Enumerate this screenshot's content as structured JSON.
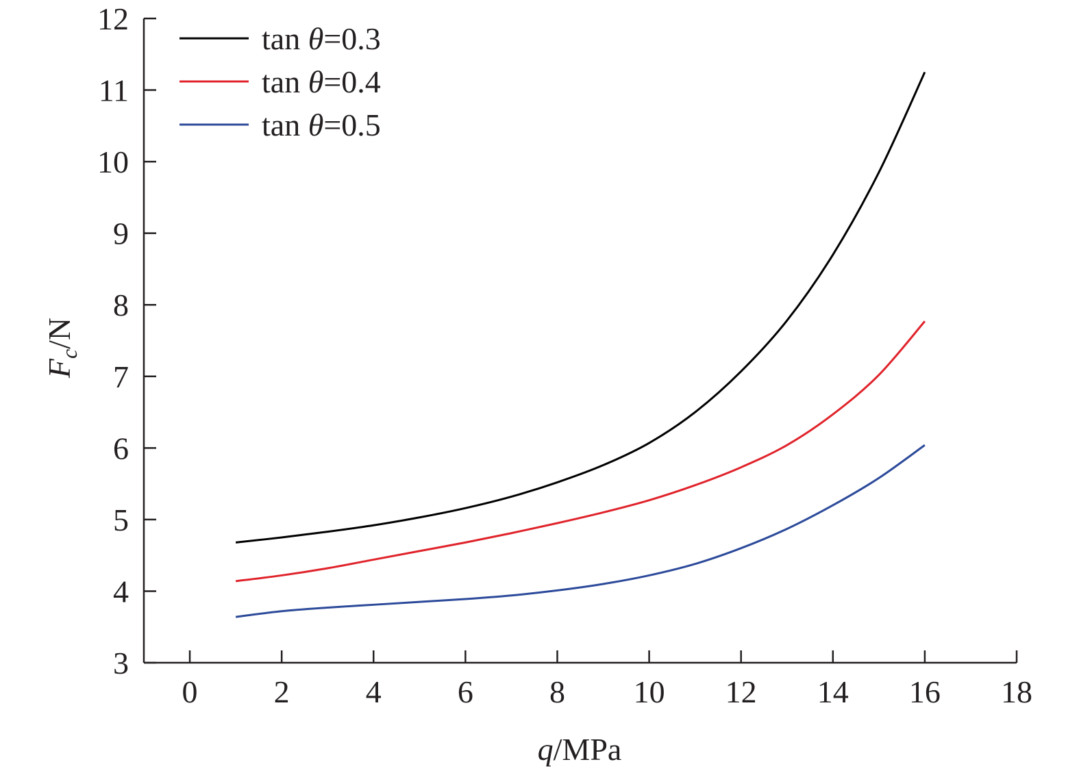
{
  "chart_data": {
    "type": "line",
    "title": "",
    "xlabel": {
      "symbol": "q",
      "unit": "/MPa"
    },
    "ylabel": {
      "symbol": "F",
      "subscript": "c",
      "unit": "/N"
    },
    "xlim": [
      -1,
      18
    ],
    "ylim": [
      3,
      12
    ],
    "xticks": [
      0,
      2,
      4,
      6,
      8,
      10,
      12,
      14,
      16,
      18
    ],
    "yticks": [
      3,
      4,
      5,
      6,
      7,
      8,
      9,
      10,
      11,
      12
    ],
    "grid": false,
    "legend_position": "top-left",
    "x": [
      1,
      2,
      3,
      4,
      5,
      6,
      7,
      8,
      9,
      10,
      11,
      12,
      13,
      14,
      15,
      16
    ],
    "series": [
      {
        "name": "tan θ=0.3",
        "color": "#000000",
        "values": [
          4.68,
          4.75,
          4.83,
          4.92,
          5.03,
          5.16,
          5.32,
          5.52,
          5.76,
          6.07,
          6.5,
          7.07,
          7.78,
          8.7,
          9.85,
          11.25
        ]
      },
      {
        "name": "tan θ=0.4",
        "color": "#e0232b",
        "values": [
          4.14,
          4.22,
          4.32,
          4.44,
          4.56,
          4.68,
          4.81,
          4.95,
          5.1,
          5.27,
          5.48,
          5.73,
          6.04,
          6.47,
          7.02,
          7.77
        ]
      },
      {
        "name": "tan θ=0.5",
        "color": "#2c4a9a",
        "values": [
          3.64,
          3.72,
          3.77,
          3.81,
          3.85,
          3.89,
          3.94,
          4.01,
          4.1,
          4.22,
          4.38,
          4.6,
          4.87,
          5.2,
          5.58,
          6.04
        ]
      }
    ]
  }
}
